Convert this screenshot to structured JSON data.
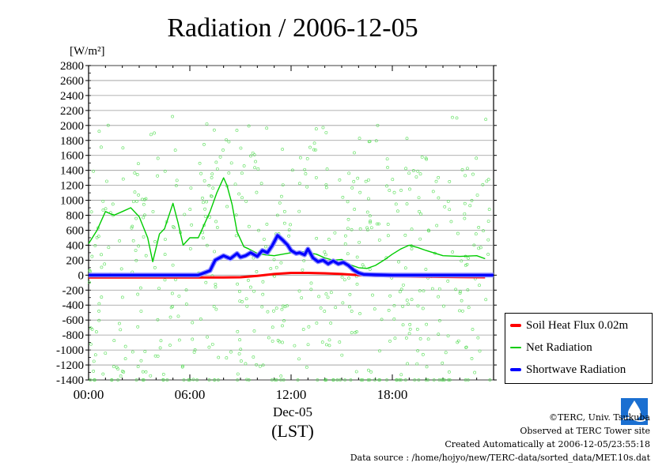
{
  "chart_data": {
    "type": "line",
    "title": "Radiation / 2006-12-05",
    "ylabel": "[W/m²]",
    "xlabel_date": "Dec-05",
    "xlabel_tz": "(LST)",
    "ylim": [
      -1400,
      2800
    ],
    "xlim": [
      0,
      24
    ],
    "yticks": [
      -1400,
      -1200,
      -1000,
      -800,
      -600,
      -400,
      -200,
      0,
      200,
      400,
      600,
      800,
      1000,
      1200,
      1400,
      1600,
      1800,
      2000,
      2200,
      2400,
      2600,
      2800
    ],
    "xticks": [
      {
        "value": 0,
        "label": "00:00"
      },
      {
        "value": 6,
        "label": "06:00"
      },
      {
        "value": 12,
        "label": "12:00"
      },
      {
        "value": 18,
        "label": "18:00"
      }
    ],
    "grid": true,
    "legend_position": "bottom-right",
    "series": [
      {
        "name": "Soil Heat Flux 0.02m",
        "color": "#ff0000",
        "x": [
          0,
          2,
          4,
          6,
          8,
          9,
          10,
          11,
          12,
          13,
          14,
          15,
          16,
          17,
          18,
          20,
          22,
          23.5
        ],
        "y": [
          -30,
          -30,
          -30,
          -30,
          -30,
          -28,
          -10,
          15,
          30,
          30,
          25,
          15,
          0,
          -10,
          -15,
          -20,
          -25,
          -28
        ]
      },
      {
        "name": "Net Radiation",
        "color": "#00cc00",
        "x": [
          0,
          0.5,
          1.0,
          1.5,
          2.0,
          2.5,
          3.0,
          3.5,
          3.8,
          4.2,
          4.5,
          5.0,
          5.3,
          5.6,
          6.0,
          6.5,
          6.8,
          7.2,
          7.6,
          8.0,
          8.2,
          8.5,
          8.8,
          9.2,
          9.5,
          10.0,
          10.5,
          11.0,
          11.5,
          12.0,
          12.5,
          13.0,
          13.5,
          14.0,
          14.5,
          15.0,
          15.5,
          16.0,
          16.5,
          17.0,
          17.5,
          18.0,
          18.5,
          19.0,
          19.5,
          20.0,
          21.0,
          22.0,
          23.0,
          23.5
        ],
        "y": [
          420,
          600,
          850,
          800,
          850,
          900,
          780,
          500,
          180,
          550,
          620,
          960,
          700,
          400,
          500,
          500,
          650,
          850,
          1100,
          1300,
          1200,
          950,
          580,
          380,
          350,
          290,
          270,
          260,
          280,
          300,
          320,
          300,
          280,
          230,
          200,
          210,
          140,
          100,
          90,
          130,
          200,
          280,
          350,
          400,
          370,
          330,
          260,
          250,
          260,
          220
        ]
      },
      {
        "name": "Shortwave Radiation",
        "color": "#0000ff",
        "x": [
          0,
          5,
          6.5,
          7.2,
          7.5,
          8.0,
          8.4,
          8.8,
          9.0,
          9.3,
          9.6,
          10.0,
          10.3,
          10.6,
          10.9,
          11.2,
          11.5,
          11.8,
          12.0,
          12.3,
          12.5,
          12.8,
          13.0,
          13.3,
          13.6,
          13.9,
          14.2,
          14.5,
          14.8,
          15.1,
          15.4,
          15.7,
          16.0,
          16.3,
          17.0,
          18.0,
          24
        ],
        "y": [
          0,
          0,
          0,
          60,
          200,
          260,
          220,
          290,
          240,
          260,
          300,
          250,
          330,
          300,
          400,
          530,
          470,
          400,
          330,
          290,
          300,
          270,
          350,
          230,
          180,
          200,
          150,
          190,
          150,
          170,
          130,
          70,
          30,
          10,
          5,
          0,
          0
        ]
      }
    ]
  },
  "footer": {
    "copyright": "©TERC, Univ. Tsukuba",
    "observed": "Observed at TERC Tower site",
    "created": "Created Automatically at 2006-12-05/23:55:18",
    "source": "Data source : /home/hojyo/new/TERC-data/sorted_data/MET.10s.dat"
  }
}
